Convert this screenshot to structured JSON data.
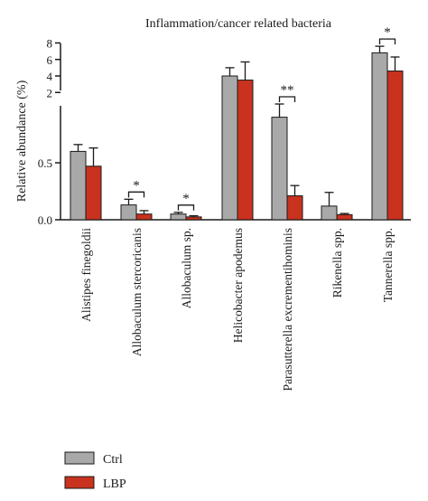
{
  "chart_data": {
    "type": "bar",
    "title": "Inflammation/cancer related bacteria",
    "xlabel": "",
    "ylabel": "Relative abundance (%)",
    "y_axis": {
      "broken": true,
      "lower_range": [
        0,
        1.0
      ],
      "upper_range": [
        0,
        8
      ],
      "lower_ticks": [
        "0.0",
        "0.5"
      ],
      "upper_ticks": [
        "2",
        "4",
        "6",
        "8"
      ]
    },
    "categories": [
      "Alistipes finegoldii",
      "Allobaculum stercoricanis",
      "Allobaculum sp.",
      "Helicobacter apodemus",
      "Parasutterella excrementihominis",
      "Rikenella spp.",
      "Tannerella spp."
    ],
    "series": [
      {
        "name": "Ctrl",
        "color": "#a9a9a9",
        "values": [
          0.6,
          0.13,
          0.05,
          4.0,
          0.9,
          0.12,
          6.8
        ],
        "errors": [
          0.06,
          0.05,
          0.015,
          1.0,
          0.2,
          0.12,
          0.8
        ]
      },
      {
        "name": "LBP",
        "color": "#c8321e",
        "values": [
          0.47,
          0.05,
          0.025,
          3.5,
          0.21,
          0.045,
          4.6
        ],
        "errors": [
          0.16,
          0.03,
          0.01,
          2.2,
          0.09,
          0.01,
          1.7
        ]
      }
    ],
    "significance": [
      {
        "category": "Allobaculum stercoricanis",
        "label": "*"
      },
      {
        "category": "Allobaculum sp.",
        "label": "*"
      },
      {
        "category": "Parasutterella excrementihominis",
        "label": "**"
      },
      {
        "category": "Tannerella spp.",
        "label": "*"
      }
    ],
    "legend": {
      "position": "bottom-left",
      "entries": [
        "Ctrl",
        "LBP"
      ]
    },
    "grid": false
  }
}
